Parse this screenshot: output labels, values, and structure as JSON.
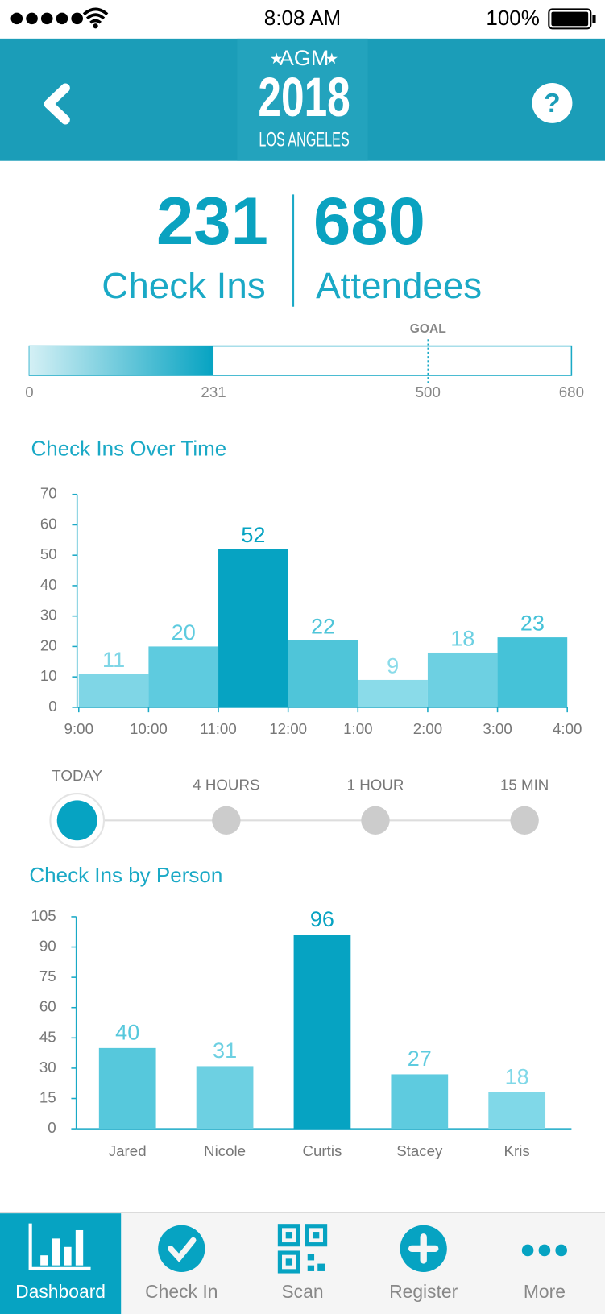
{
  "status_bar": {
    "time": "8:08 AM",
    "battery": "100%"
  },
  "header": {
    "event": "AGM",
    "year": "2018",
    "city": "LOS ANGELES"
  },
  "stats": {
    "check_ins": {
      "value": 231,
      "label": "Check Ins"
    },
    "attendees": {
      "value": 680,
      "label": "Attendees"
    }
  },
  "progress": {
    "value": 231,
    "goal": 500,
    "goal_label": "GOAL",
    "xlim": [
      0,
      680
    ],
    "xticks": [
      0,
      231,
      500,
      680
    ]
  },
  "chart_data": [
    {
      "type": "histogram",
      "title": "Check Ins Over Time",
      "bins": [
        "9:00",
        "10:00",
        "11:00",
        "12:00",
        "1:00",
        "2:00",
        "3:00",
        "4:00"
      ],
      "values": [
        11,
        20,
        52,
        22,
        9,
        18,
        23
      ],
      "colors": [
        "#7fd6e6",
        "#5ecbdf",
        "#06a3c2",
        "#4fc5d9",
        "#8adbe9",
        "#6dd0e2",
        "#45c2d8"
      ],
      "ylim": [
        0,
        70
      ],
      "yticks": [
        0,
        10,
        20,
        30,
        40,
        50,
        60,
        70
      ]
    },
    {
      "type": "bar",
      "title": "Check Ins by Person",
      "categories": [
        "Jared",
        "Nicole",
        "Curtis",
        "Stacey",
        "Kris"
      ],
      "values": [
        40,
        31,
        96,
        27,
        18
      ],
      "colors": [
        "#56c8dc",
        "#6dd0e2",
        "#06a3c2",
        "#5ecbdf",
        "#80d8e8"
      ],
      "ylim": [
        0,
        105
      ],
      "yticks": [
        0,
        15,
        30,
        45,
        60,
        75,
        90,
        105
      ]
    }
  ],
  "time_range": {
    "options": [
      "TODAY",
      "4 HOURS",
      "1 HOUR",
      "15 MIN"
    ],
    "selected": 0
  },
  "tab_bar": {
    "tabs": [
      "Dashboard",
      "Check In",
      "Scan",
      "Register",
      "More"
    ],
    "selected": 0
  }
}
